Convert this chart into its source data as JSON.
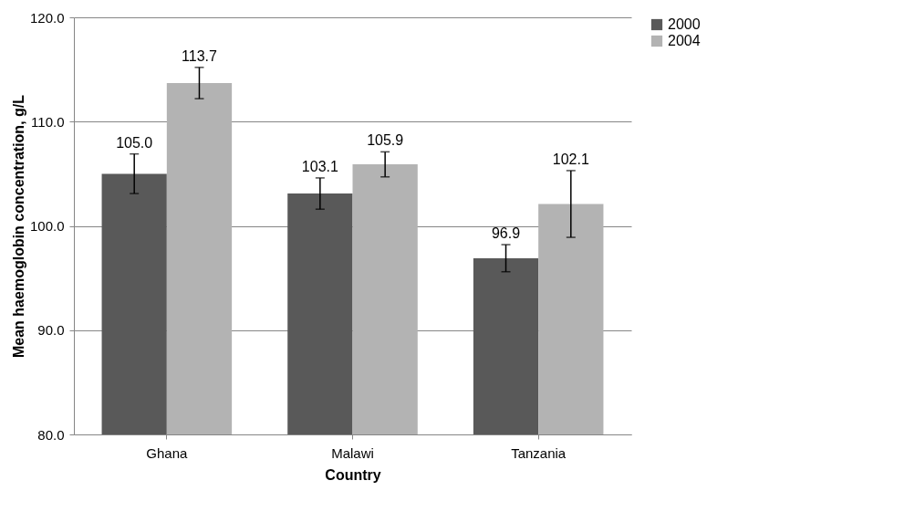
{
  "chart_data": {
    "type": "bar",
    "xlabel": "Country",
    "ylabel": "Mean haemoglobin concentration, g/L",
    "categories": [
      "Ghana",
      "Malawi",
      "Tanzania"
    ],
    "series": [
      {
        "name": "2000",
        "color": "#595959",
        "values": [
          105.0,
          103.1,
          96.9
        ],
        "errors": [
          1.9,
          1.5,
          1.3
        ],
        "value_labels": [
          "105.0",
          "103.1",
          "96.9"
        ]
      },
      {
        "name": "2004",
        "color": "#b3b3b3",
        "values": [
          113.7,
          105.9,
          102.1
        ],
        "errors": [
          1.5,
          1.2,
          3.2
        ],
        "value_labels": [
          "113.7",
          "105.9",
          "102.1"
        ]
      }
    ],
    "ylim": [
      80,
      120
    ],
    "yticks": [
      {
        "value": 80,
        "label": "80.0"
      },
      {
        "value": 90,
        "label": "90.0"
      },
      {
        "value": 100,
        "label": "100.0"
      },
      {
        "value": 110,
        "label": "110.0"
      },
      {
        "value": 120,
        "label": "120.0"
      }
    ],
    "grid": "y",
    "legend": "right"
  }
}
